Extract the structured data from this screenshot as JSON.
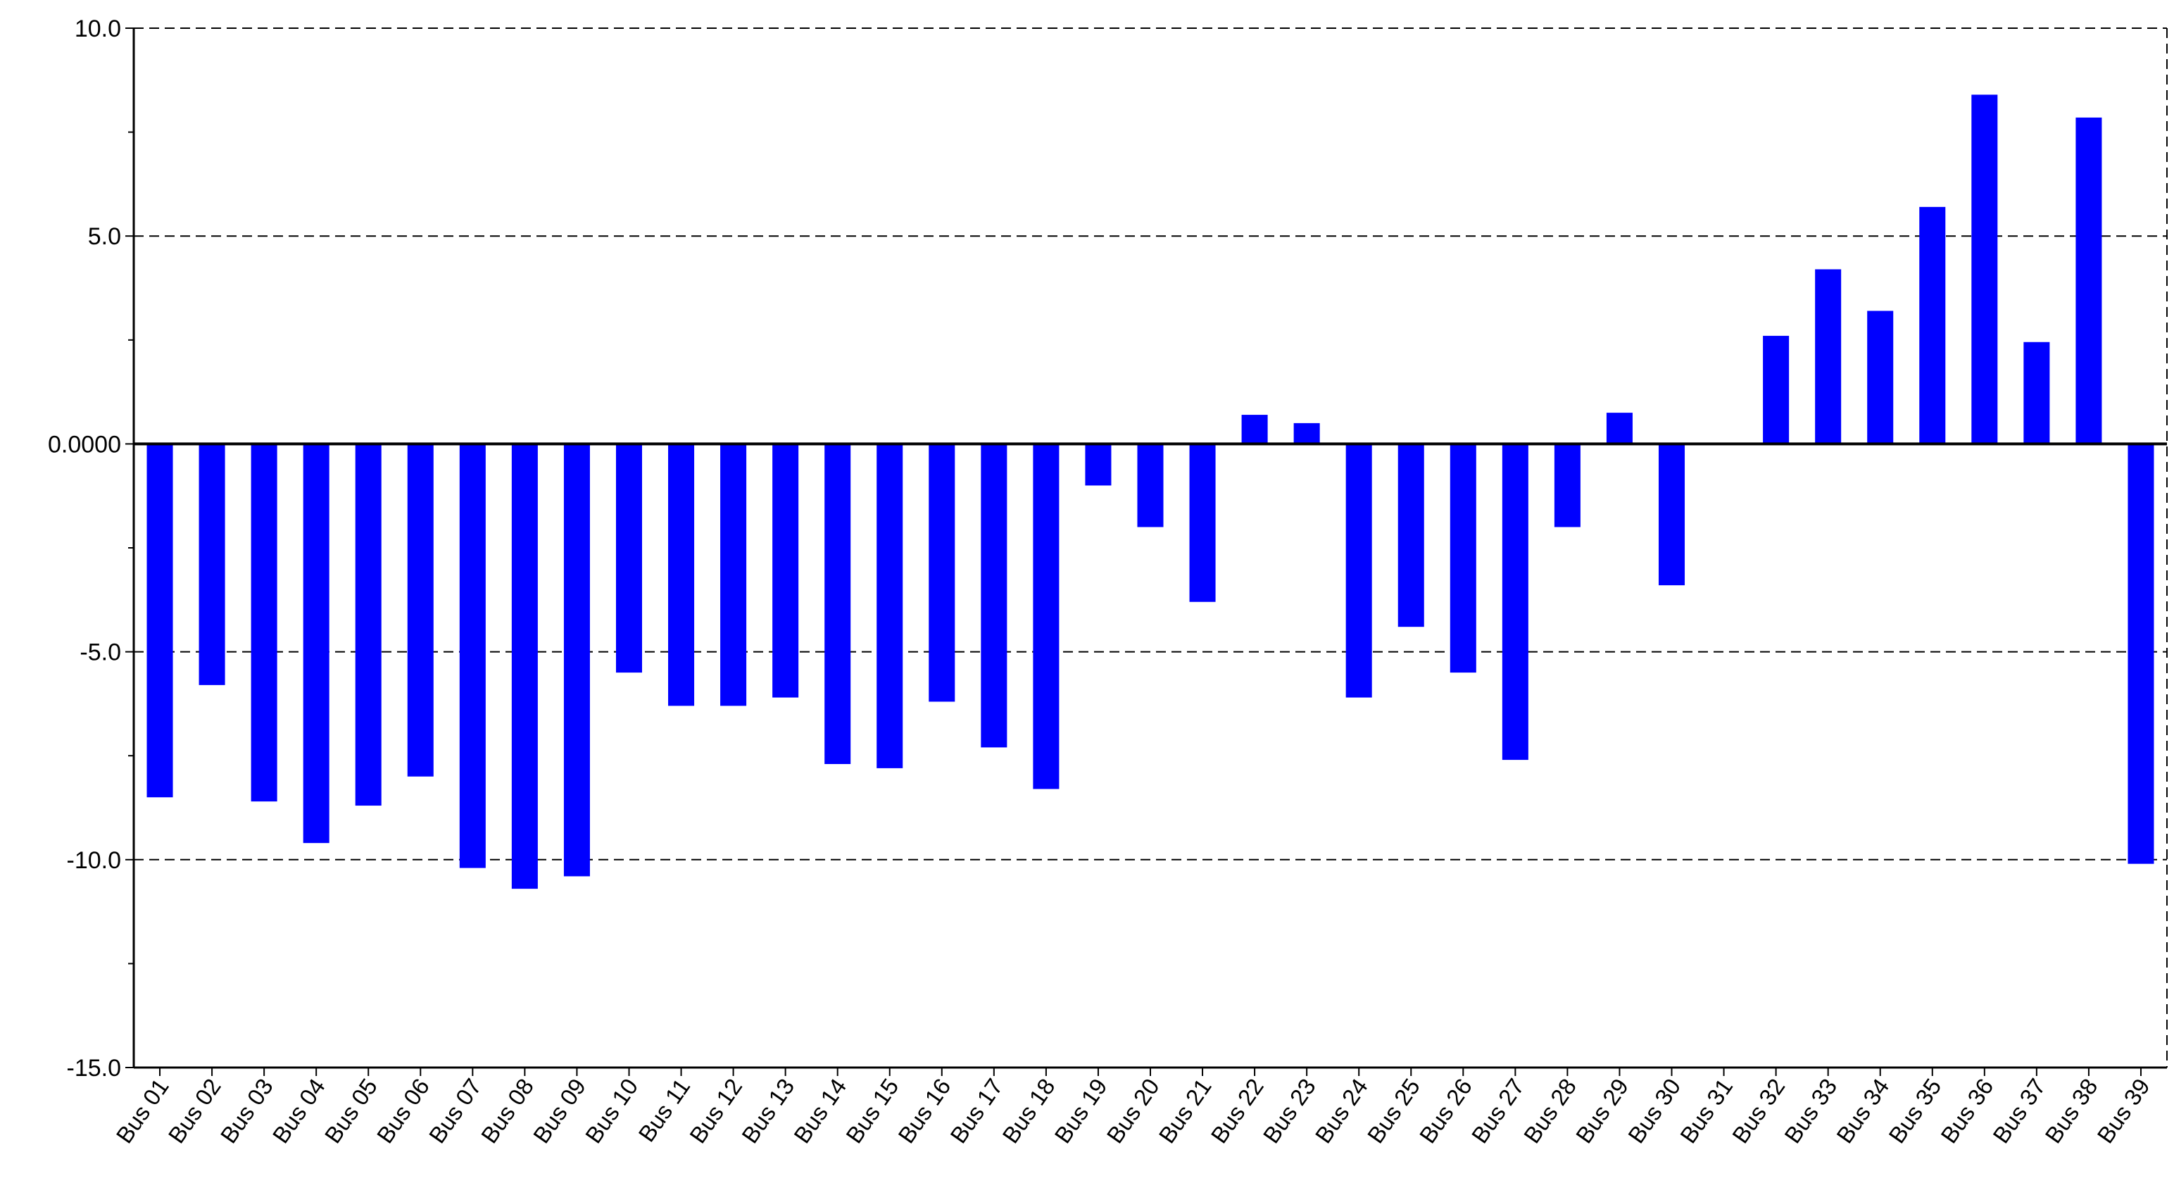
{
  "chart_data": {
    "type": "bar",
    "title": "",
    "xlabel": "",
    "ylabel": "",
    "ylim": [
      -15,
      10
    ],
    "yticks": [
      {
        "value": 10,
        "label": "10.0"
      },
      {
        "value": 5,
        "label": "5.0"
      },
      {
        "value": 0,
        "label": "0.0000"
      },
      {
        "value": -5,
        "label": "-5.0"
      },
      {
        "value": -10,
        "label": "-10.0"
      },
      {
        "value": -15,
        "label": "-15.0"
      }
    ],
    "grid": "dashed horizontal lines at major ticks",
    "legend": "none",
    "bar_color": "#0000ff",
    "categories": [
      "Bus 01",
      "Bus 02",
      "Bus 03",
      "Bus 04",
      "Bus 05",
      "Bus 06",
      "Bus 07",
      "Bus 08",
      "Bus 09",
      "Bus 10",
      "Bus 11",
      "Bus 12",
      "Bus 13",
      "Bus 14",
      "Bus 15",
      "Bus 16",
      "Bus 17",
      "Bus 18",
      "Bus 19",
      "Bus 20",
      "Bus 21",
      "Bus 22",
      "Bus 23",
      "Bus 24",
      "Bus 25",
      "Bus 26",
      "Bus 27",
      "Bus 28",
      "Bus 29",
      "Bus 30",
      "Bus 31",
      "Bus 32",
      "Bus 33",
      "Bus 34",
      "Bus 35",
      "Bus 36",
      "Bus 37",
      "Bus 38",
      "Bus 39"
    ],
    "values": [
      -8.5,
      -5.8,
      -8.6,
      -9.6,
      -8.7,
      -8.0,
      -10.2,
      -10.7,
      -10.4,
      -5.5,
      -6.3,
      -6.3,
      -6.1,
      -7.7,
      -7.8,
      -6.2,
      -7.3,
      -8.3,
      -1.0,
      -2.0,
      -3.8,
      0.7,
      0.5,
      -6.1,
      -4.4,
      -5.5,
      -7.6,
      -2.0,
      0.75,
      -3.4,
      0.0,
      2.6,
      4.2,
      3.2,
      5.7,
      8.4,
      2.45,
      7.85,
      -10.1
    ]
  }
}
